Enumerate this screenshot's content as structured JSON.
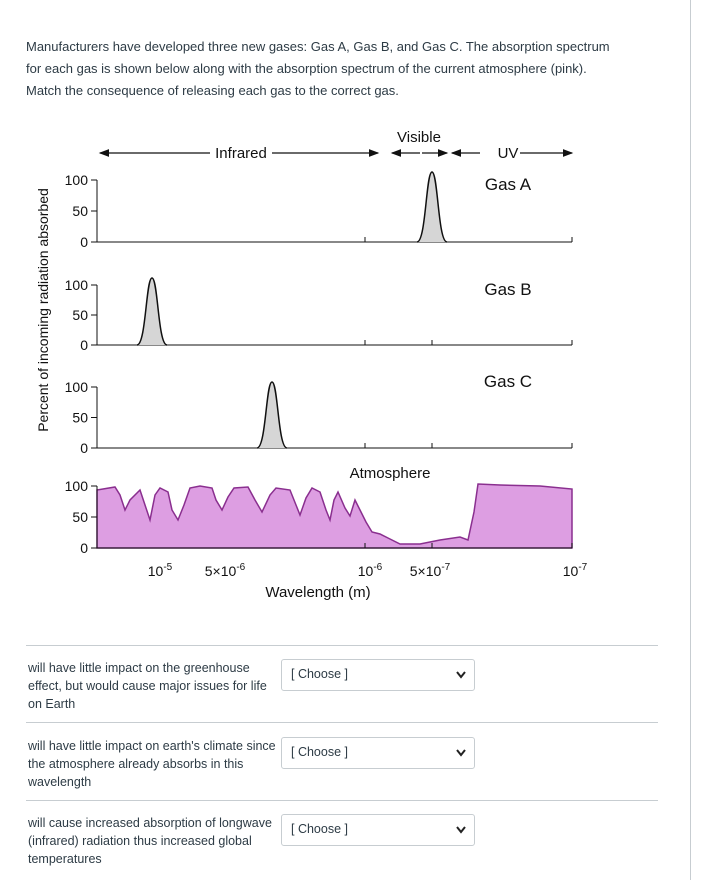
{
  "question": {
    "lines": [
      "Manufacturers have developed three new gases: Gas A, Gas B, and Gas C. The absorption spectrum",
      "for each gas is shown below along with the absorption spectrum of the current atmosphere (pink).",
      "Match the consequence of releasing each gas to the correct gas."
    ]
  },
  "figure": {
    "y_axis_label": "Percent of incoming radiation absorbed",
    "band_labels": {
      "infrared": "Infrared",
      "visible": "Visible",
      "uv": "UV"
    },
    "panel_labels": [
      "Gas A",
      "Gas B",
      "Gas C",
      "Atmosphere"
    ],
    "tick_labels": [
      "100",
      "50",
      "0"
    ],
    "x_tick_labels": [
      {
        "base": "10",
        "exp": "-5"
      },
      {
        "base": "5×10",
        "exp": "-6"
      },
      {
        "base": "10",
        "exp": "-6"
      },
      {
        "base": "5×10",
        "exp": "-7"
      },
      {
        "base": "10",
        "exp": "-7"
      }
    ],
    "x_axis_label": "Wavelength (m)"
  },
  "items": [
    {
      "text": "will have little impact on the greenhouse effect, but would cause major issues for life on Earth",
      "select": "[ Choose ]"
    },
    {
      "text": "will have little impact on earth's climate since the atmosphere already absorbs in this wavelength",
      "select": "[ Choose ]"
    },
    {
      "text": "will cause increased absorption of longwave (infrared) radiation thus increased global temperatures",
      "select": "[ Choose ]"
    }
  ]
}
